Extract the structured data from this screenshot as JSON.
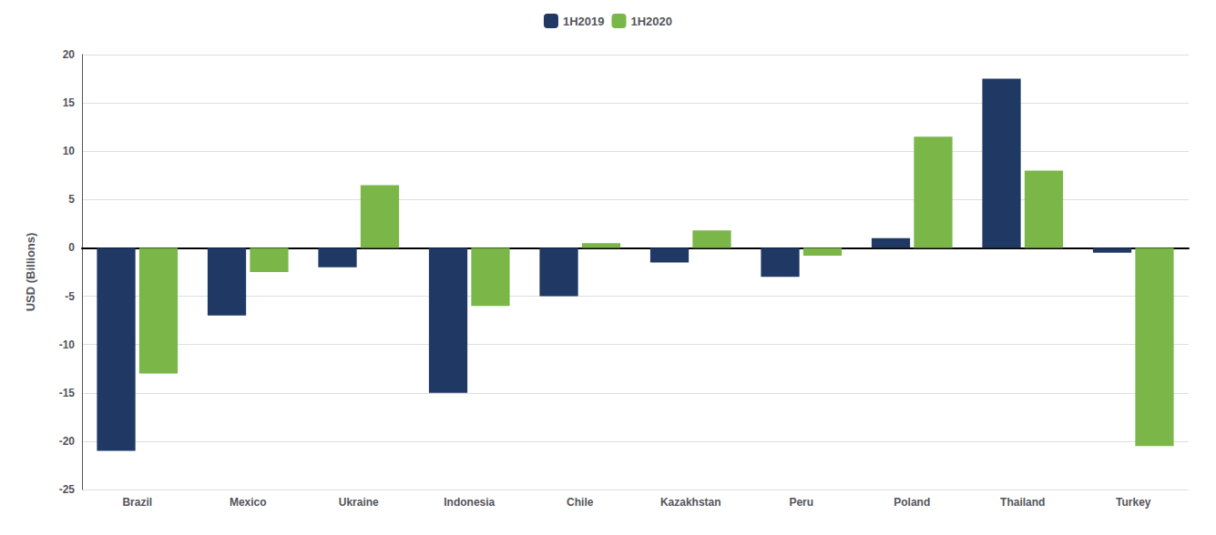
{
  "chart_data": {
    "type": "bar",
    "categories": [
      "Brazil",
      "Mexico",
      "Ukraine",
      "Indonesia",
      "Chile",
      "Kazakhstan",
      "Peru",
      "Poland",
      "Thailand",
      "Turkey"
    ],
    "series": [
      {
        "name": "1H2019",
        "color": "#1f3864",
        "values": [
          -21.0,
          -7.0,
          -2.0,
          -15.0,
          -5.0,
          -1.5,
          -3.0,
          1.0,
          17.5,
          -0.5
        ]
      },
      {
        "name": "1H2020",
        "color": "#7ab648",
        "values": [
          -13.0,
          -2.5,
          6.5,
          -6.0,
          0.5,
          1.8,
          -0.8,
          11.5,
          8.0,
          -20.5
        ]
      }
    ],
    "ylabel": "USD (Billions)",
    "ylim": [
      -25,
      20
    ],
    "yticks": [
      -25,
      -20,
      -15,
      -10,
      -5,
      0,
      5,
      10,
      15,
      20
    ],
    "grid": true,
    "legend": "top"
  }
}
